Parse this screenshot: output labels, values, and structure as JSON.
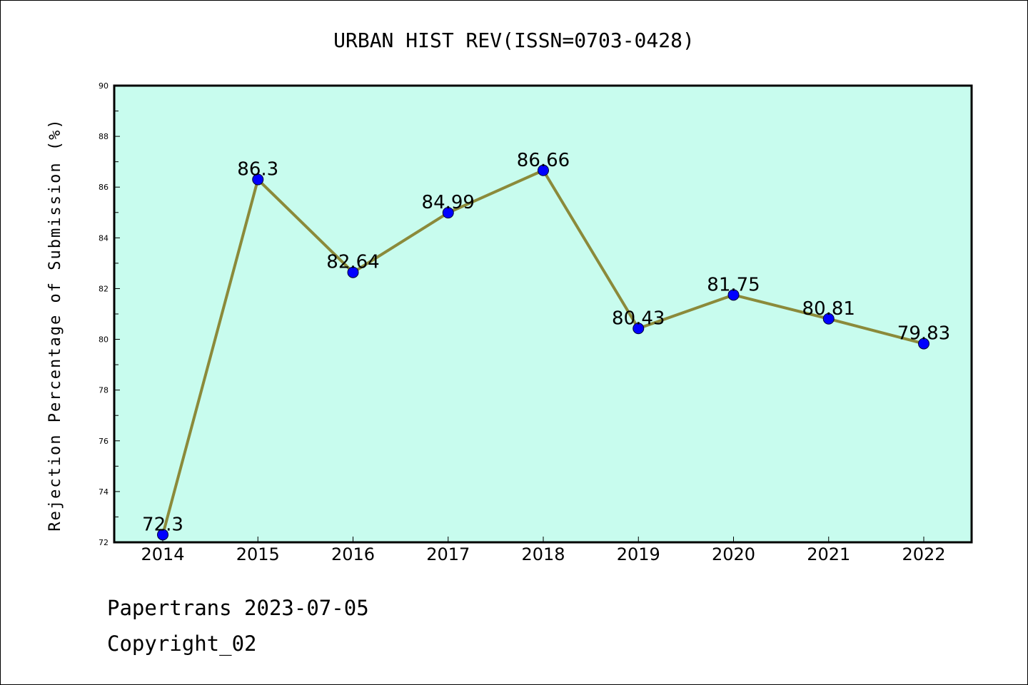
{
  "chart_data": {
    "type": "line",
    "title": "URBAN HIST REV(ISSN=0703-0428)",
    "xlabel": "",
    "ylabel": "Rejection Percentage of Submission (%)",
    "categories": [
      "2014",
      "2015",
      "2016",
      "2017",
      "2018",
      "2019",
      "2020",
      "2021",
      "2022"
    ],
    "series": [
      {
        "values": [
          72.3,
          86.3,
          82.64,
          84.99,
          86.66,
          80.43,
          81.75,
          80.81,
          79.83
        ],
        "labels": [
          "72.3",
          "86.3",
          "82.64",
          "84.99",
          "86.66",
          "80.43",
          "81.75",
          "80.81",
          "79.83"
        ]
      }
    ],
    "ylim": [
      72,
      90
    ],
    "yticks": [
      "72",
      "74",
      "76",
      "78",
      "80",
      "82",
      "84",
      "86",
      "88",
      "90"
    ],
    "grid": false,
    "legend": "none",
    "colors": {
      "plot_background": "#c8fcee",
      "line": "#8b8a3a",
      "marker": "#0000ff"
    }
  },
  "footer": {
    "line1": "Papertrans 2023-07-05",
    "line2": "Copyright_02"
  }
}
